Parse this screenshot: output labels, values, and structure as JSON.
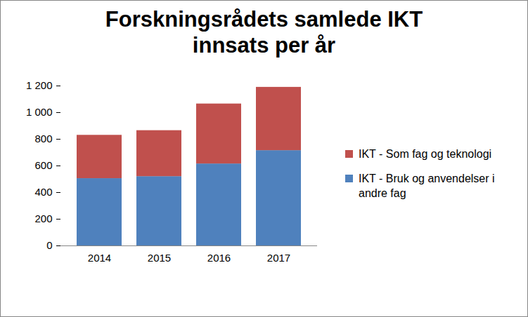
{
  "chart_data": {
    "type": "bar",
    "title": "Forskningsrådets samlede IKT innsats per år",
    "categories": [
      "2014",
      "2015",
      "2016",
      "2017"
    ],
    "series": [
      {
        "name": "IKT - Bruk og anvendelser i andre fag",
        "color": "#4f81bd",
        "values": [
          505,
          520,
          615,
          715
        ]
      },
      {
        "name": "IKT - Som fag og teknologi",
        "color": "#c0504d",
        "values": [
          325,
          345,
          450,
          475
        ]
      }
    ],
    "stacked": true,
    "ylim": [
      0,
      1200
    ],
    "yticks": [
      0,
      200,
      400,
      600,
      800,
      {
        "value": 1000,
        "label": "1 000"
      },
      {
        "value": 1200,
        "label": "1 200"
      }
    ],
    "grid": false,
    "legend": "right"
  }
}
